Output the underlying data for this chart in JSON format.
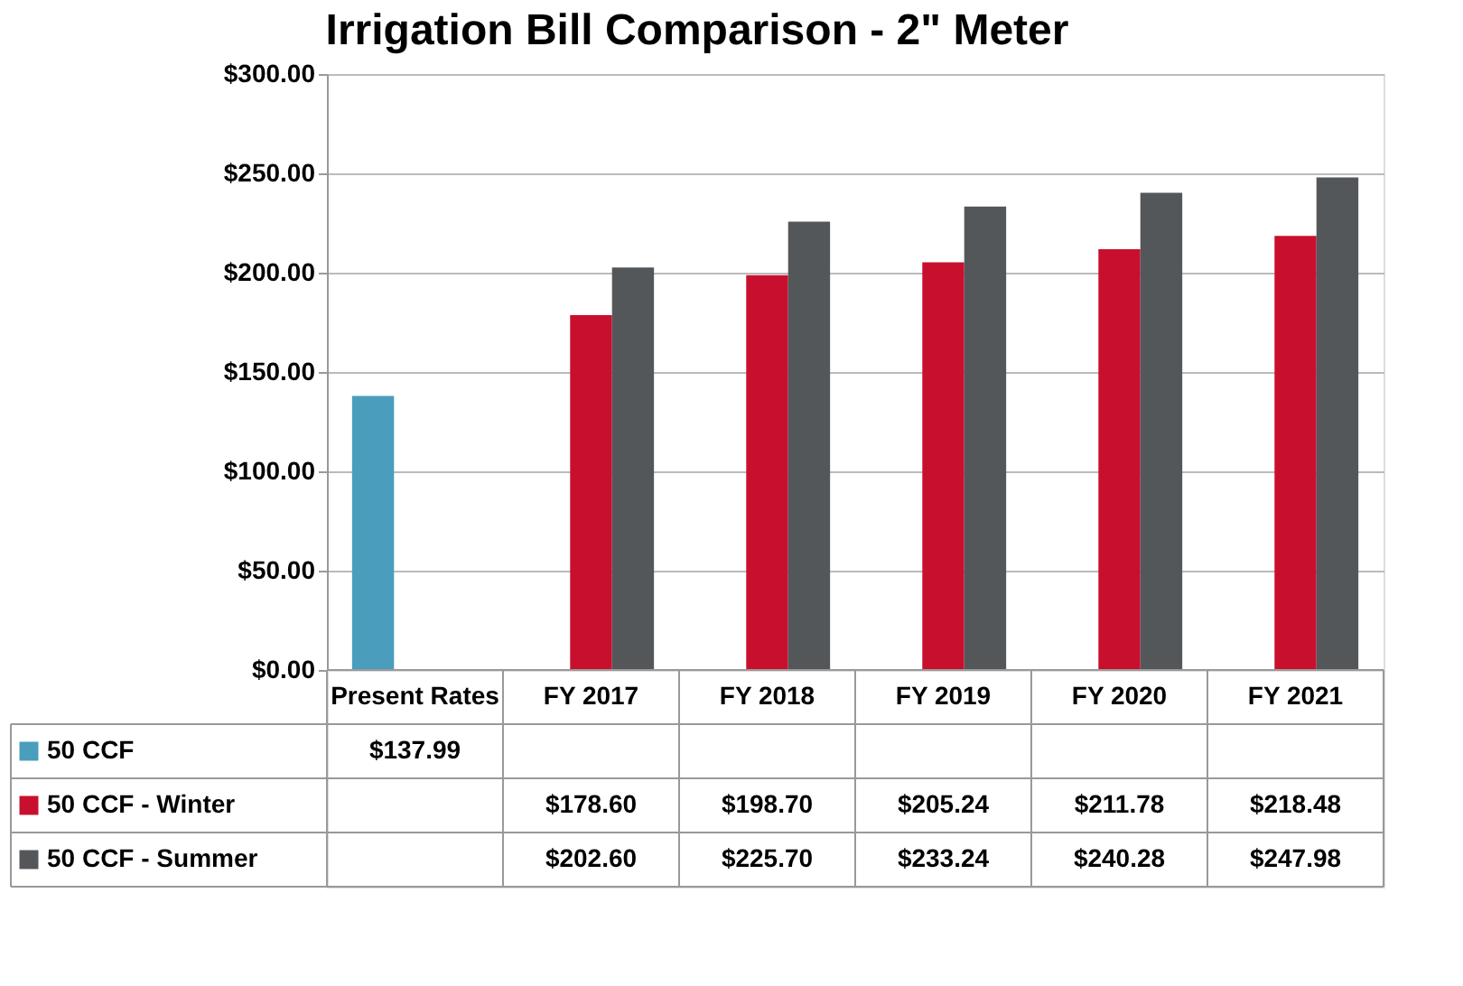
{
  "chart_data": {
    "type": "bar",
    "title": "Irrigation Bill Comparison - 2\" Meter",
    "categories": [
      "Present Rates",
      "FY 2017",
      "FY 2018",
      "FY 2019",
      "FY 2020",
      "FY 2021"
    ],
    "series": [
      {
        "name": "50 CCF",
        "color": "#4a9dbd",
        "values": [
          137.99,
          null,
          null,
          null,
          null,
          null
        ],
        "value_labels": [
          "$137.99",
          null,
          null,
          null,
          null,
          null
        ]
      },
      {
        "name": "50 CCF - Winter",
        "color": "#c8102e",
        "values": [
          null,
          178.6,
          198.7,
          205.24,
          211.78,
          218.48
        ],
        "value_labels": [
          null,
          "$178.60",
          "$198.70",
          "$205.24",
          "$211.78",
          "$218.48"
        ]
      },
      {
        "name": "50 CCF - Summer",
        "color": "#54575a",
        "values": [
          null,
          202.6,
          225.7,
          233.24,
          240.28,
          247.98
        ],
        "value_labels": [
          null,
          "$202.60",
          "$225.70",
          "$233.24",
          "$240.28",
          "$247.98"
        ]
      }
    ],
    "ylim": [
      0,
      300
    ],
    "yticks": [
      {
        "value": 0,
        "label": "$0.00"
      },
      {
        "value": 50,
        "label": "$50.00"
      },
      {
        "value": 100,
        "label": "$100.00"
      },
      {
        "value": 150,
        "label": "$150.00"
      },
      {
        "value": 200,
        "label": "$200.00"
      },
      {
        "value": 250,
        "label": "$250.00"
      },
      {
        "value": 300,
        "label": "$300.00"
      }
    ],
    "grid": "y",
    "legend": "bottom"
  }
}
